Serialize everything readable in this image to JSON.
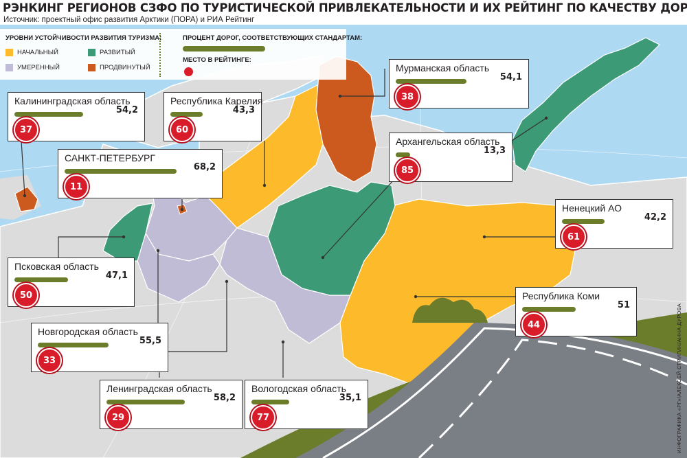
{
  "title": "РЭНКИНГ РЕГИОНОВ СЗФО ПО ТУРИСТИЧЕСКОЙ ПРИВЛЕКАТЕЛЬНОСТИ И ИХ РЕЙТИНГ ПО КАЧЕСТВУ ДОРОГ",
  "source": "Источник: проектный офис развития Арктики (ПОРА) и РИА Рейтинг",
  "credit": "ИНФОГРАФИКА «РГ»/АЛЕКСЕЙ СТРИГИН/АННА ДУРОВА",
  "legend": {
    "levels_title": "УРОВНИ УСТОЙЧИВОСТИ РАЗВИТИЯ ТУРИЗМА:",
    "levels": [
      {
        "label": "НАЧАЛЬНЫЙ",
        "color": "#fdbb2b"
      },
      {
        "label": "РАЗВИТЫЙ",
        "color": "#3d9a76"
      },
      {
        "label": "УМЕРЕННЫЙ",
        "color": "#c1bcd6"
      },
      {
        "label": "ПРОДВИНУТЫЙ",
        "color": "#cc5a1e"
      }
    ],
    "roads_title": "ПРОЦЕНТ ДОРОГ, СООТВЕТСТВУЮЩИХ СТАНДАРТАМ:",
    "rank_title": "МЕСТО В РЕЙТИНГЕ:"
  },
  "regions": [
    {
      "name": "Калининградская область",
      "percent": "54,2",
      "rank": "37",
      "percent_value": 54.2,
      "level": "ПРОДВИНУТЫЙ"
    },
    {
      "name": "Республика Карелия",
      "percent": "43,3",
      "rank": "60",
      "percent_value": 43.3,
      "level": "НАЧАЛЬНЫЙ"
    },
    {
      "name": "Мурманская область",
      "percent": "54,1",
      "rank": "38",
      "percent_value": 54.1,
      "level": "ПРОДВИНУТЫЙ"
    },
    {
      "name": "САНКТ-ПЕТЕРБУРГ",
      "percent": "68,2",
      "rank": "11",
      "percent_value": 68.2,
      "level": "ПРОДВИНУТЫЙ"
    },
    {
      "name": "Архангельская область",
      "percent": "13,3",
      "rank": "85",
      "percent_value": 13.3,
      "level": "РАЗВИТЫЙ"
    },
    {
      "name": "Ненецкий АО",
      "percent": "42,2",
      "rank": "61",
      "percent_value": 42.2,
      "level": "РАЗВИТЫЙ"
    },
    {
      "name": "Псковская область",
      "percent": "47,1",
      "rank": "50",
      "percent_value": 47.1,
      "level": "РАЗВИТЫЙ"
    },
    {
      "name": "Республика Коми",
      "percent": "51",
      "rank": "44",
      "percent_value": 51,
      "level": "НАЧАЛЬНЫЙ"
    },
    {
      "name": "Новгородская область",
      "percent": "55,5",
      "rank": "33",
      "percent_value": 55.5,
      "level": "УМЕРЕННЫЙ"
    },
    {
      "name": "Ленинградская область",
      "percent": "58,2",
      "rank": "29",
      "percent_value": 58.2,
      "level": "УМЕРЕННЫЙ"
    },
    {
      "name": "Вологодская область",
      "percent": "35,1",
      "rank": "77",
      "percent_value": 35.1,
      "level": "УМЕРЕННЫЙ"
    }
  ]
}
